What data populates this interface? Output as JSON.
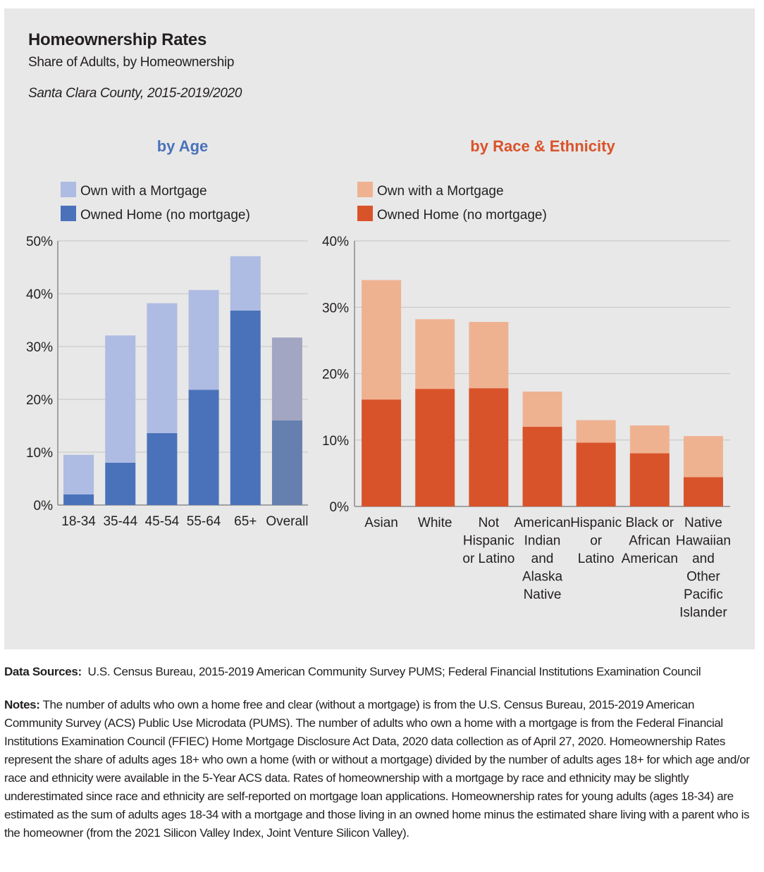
{
  "header": {
    "title": "Homeownership Rates",
    "subtitle": "Share of Adults, by Homeownership",
    "geography": "Santa Clara County, 2015-2019/2020"
  },
  "colors": {
    "age_light": "#aebbe2",
    "age_dark": "#4a72bb",
    "overall_light": "#a3a6c2",
    "overall_dark": "#6580ae",
    "race_light": "#efb291",
    "race_dark": "#d9532a",
    "age_title": "#4a72bb",
    "race_title": "#d9532a"
  },
  "chart_data": [
    {
      "type": "bar",
      "stacked": true,
      "title": "by Age",
      "categories": [
        "18-34",
        "35-44",
        "45-54",
        "55-64",
        "65+",
        "Overall"
      ],
      "series": [
        {
          "name": "Owned Home (no mortgage)",
          "values": [
            2,
            8,
            13.6,
            21.8,
            36.8,
            16
          ]
        },
        {
          "name": "Own with a Mortgage",
          "values": [
            7.5,
            24.1,
            24.6,
            18.9,
            10.3,
            15.7
          ]
        }
      ],
      "totals": [
        9.5,
        32.1,
        38.2,
        40.7,
        47.1,
        31.7
      ],
      "yticks": [
        "0%",
        "10%",
        "20%",
        "30%",
        "40%",
        "50%"
      ],
      "ylim": [
        0,
        50
      ],
      "legend": [
        "Own with a Mortgage",
        "Owned Home (no mortgage)"
      ],
      "legend_position": "top-left"
    },
    {
      "type": "bar",
      "stacked": true,
      "title": "by Race & Ethnicity",
      "categories": [
        "Asian",
        "White",
        "Not Hispanic or Latino",
        "American Indian and Alaska Native",
        "Hispanic or Latino",
        "Black or African American",
        "Native Hawaiian and Other Pacific Islander"
      ],
      "category_lines": [
        [
          "Asian"
        ],
        [
          "White"
        ],
        [
          "Not",
          "Hispanic",
          "or Latino"
        ],
        [
          "American",
          "Indian",
          "and",
          "Alaska",
          "Native"
        ],
        [
          "Hispanic",
          "or",
          "Latino"
        ],
        [
          "Black or",
          "African",
          "American"
        ],
        [
          "Native",
          "Hawaiian",
          "and",
          "Other",
          "Pacific",
          "Islander"
        ]
      ],
      "series": [
        {
          "name": "Owned Home (no mortgage)",
          "values": [
            16.1,
            17.7,
            17.8,
            12,
            9.6,
            8,
            4.4
          ]
        },
        {
          "name": "Own with a Mortgage",
          "values": [
            18,
            10.5,
            10,
            5.3,
            3.4,
            4.2,
            6.2
          ]
        }
      ],
      "totals": [
        34.1,
        28.2,
        27.8,
        17.3,
        13,
        12.2,
        10.6
      ],
      "yticks": [
        "0%",
        "10%",
        "20%",
        "30%",
        "40%"
      ],
      "ylim": [
        0,
        40
      ],
      "legend": [
        "Own with a Mortgage",
        "Owned Home (no mortgage)"
      ],
      "legend_position": "top-left"
    }
  ],
  "footer": {
    "sources_label": "Data Sources:",
    "sources_text": "U.S. Census Bureau, 2015-2019 American Community Survey PUMS; Federal Financial Institutions Examination Council",
    "notes_label": "Notes:",
    "notes_text": "The number of adults who own a home free and clear (without a mortgage) is from the U.S. Census Bureau, 2015-2019 American Community Survey (ACS) Public Use Microdata (PUMS). The number of adults who own a home with a mortgage is from the Federal Financial Institutions Examination Council (FFIEC) Home Mortgage Disclosure Act Data, 2020 data collection as of April 27, 2020. Homeownership Rates represent the share of adults ages 18+ who own a home (with or without a mortgage) divided by the number of adults ages 18+ for which age and/or race and ethnicity were available in the 5-Year ACS data. Rates of homeownership with a mortgage by race and ethnicity may be slightly underestimated since race and ethnicity are self-reported on mortgage loan applications. Homeownership rates for young adults (ages 18-34) are estimated as the sum of adults ages 18-34 with a mortgage and those living in an owned home minus the estimated share living with a parent who is the homeowner (from the 2021 Silicon Valley Index, Joint Venture Silicon Valley)."
  }
}
